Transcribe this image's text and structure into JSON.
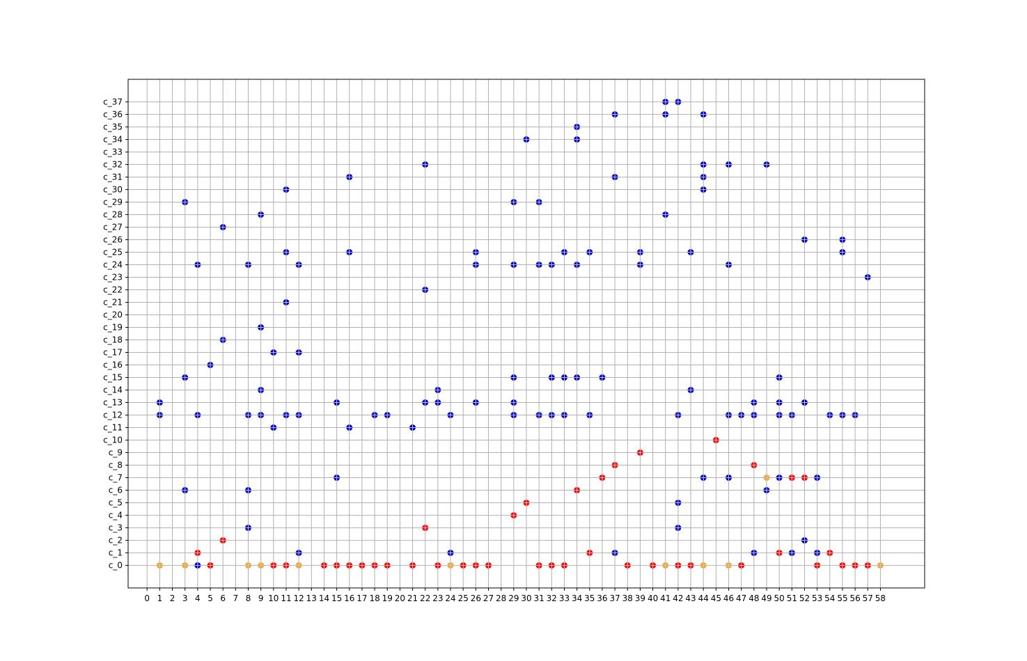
{
  "chart_data": {
    "type": "scatter",
    "title": "",
    "xlabel": "",
    "ylabel": "",
    "xlim": [
      -1.5,
      61.5
    ],
    "ylim": [
      -1.8,
      38.8
    ],
    "grid": true,
    "legend": "none",
    "x_ticks": [
      0,
      1,
      2,
      3,
      4,
      5,
      6,
      7,
      8,
      9,
      10,
      11,
      12,
      13,
      14,
      15,
      16,
      17,
      18,
      19,
      20,
      21,
      22,
      23,
      24,
      25,
      26,
      27,
      28,
      29,
      30,
      31,
      32,
      33,
      34,
      35,
      36,
      37,
      38,
      39,
      40,
      41,
      42,
      43,
      44,
      45,
      46,
      47,
      48,
      49,
      50,
      51,
      52,
      53,
      54,
      55,
      56,
      57,
      58
    ],
    "y_tick_labels": [
      "c_0",
      "c_1",
      "c_2",
      "c_3",
      "c_4",
      "c_5",
      "c_6",
      "c_7",
      "c_8",
      "c_9",
      "c_10",
      "c_11",
      "c_12",
      "c_13",
      "c_14",
      "c_15",
      "c_16",
      "c_17",
      "c_18",
      "c_19",
      "c_20",
      "c_21",
      "c_22",
      "c_23",
      "c_24",
      "c_25",
      "c_26",
      "c_27",
      "c_28",
      "c_29",
      "c_30",
      "c_31",
      "c_32",
      "c_33",
      "c_34",
      "c_35",
      "c_36",
      "c_37"
    ],
    "series": [
      {
        "color": "#0000cc",
        "points": [
          [
            1,
            12
          ],
          [
            1,
            13
          ],
          [
            3,
            29
          ],
          [
            3,
            15
          ],
          [
            3,
            6
          ],
          [
            4,
            24
          ],
          [
            4,
            12
          ],
          [
            4,
            0
          ],
          [
            5,
            16
          ],
          [
            6,
            27
          ],
          [
            6,
            18
          ],
          [
            8,
            24
          ],
          [
            8,
            12
          ],
          [
            8,
            6
          ],
          [
            8,
            3
          ],
          [
            9,
            28
          ],
          [
            9,
            19
          ],
          [
            9,
            14
          ],
          [
            9,
            12
          ],
          [
            10,
            17
          ],
          [
            10,
            11
          ],
          [
            11,
            30
          ],
          [
            11,
            25
          ],
          [
            11,
            21
          ],
          [
            11,
            12
          ],
          [
            12,
            24
          ],
          [
            12,
            17
          ],
          [
            12,
            12
          ],
          [
            12,
            1
          ],
          [
            15,
            13
          ],
          [
            15,
            7
          ],
          [
            16,
            31
          ],
          [
            16,
            25
          ],
          [
            16,
            11
          ],
          [
            18,
            12
          ],
          [
            19,
            12
          ],
          [
            21,
            11
          ],
          [
            22,
            32
          ],
          [
            22,
            22
          ],
          [
            22,
            13
          ],
          [
            23,
            14
          ],
          [
            23,
            13
          ],
          [
            24,
            12
          ],
          [
            24,
            1
          ],
          [
            26,
            25
          ],
          [
            26,
            24
          ],
          [
            26,
            13
          ],
          [
            29,
            29
          ],
          [
            29,
            24
          ],
          [
            29,
            15
          ],
          [
            29,
            13
          ],
          [
            29,
            12
          ],
          [
            30,
            34
          ],
          [
            31,
            29
          ],
          [
            31,
            24
          ],
          [
            31,
            12
          ],
          [
            32,
            24
          ],
          [
            32,
            15
          ],
          [
            32,
            12
          ],
          [
            33,
            25
          ],
          [
            33,
            15
          ],
          [
            33,
            12
          ],
          [
            34,
            35
          ],
          [
            34,
            34
          ],
          [
            34,
            24
          ],
          [
            34,
            15
          ],
          [
            35,
            25
          ],
          [
            35,
            12
          ],
          [
            36,
            15
          ],
          [
            37,
            36
          ],
          [
            37,
            31
          ],
          [
            37,
            1
          ],
          [
            39,
            25
          ],
          [
            39,
            24
          ],
          [
            41,
            37
          ],
          [
            41,
            36
          ],
          [
            41,
            28
          ],
          [
            42,
            37
          ],
          [
            42,
            12
          ],
          [
            42,
            5
          ],
          [
            42,
            3
          ],
          [
            43,
            25
          ],
          [
            43,
            14
          ],
          [
            44,
            36
          ],
          [
            44,
            32
          ],
          [
            44,
            31
          ],
          [
            44,
            30
          ],
          [
            44,
            7
          ],
          [
            46,
            32
          ],
          [
            46,
            24
          ],
          [
            46,
            12
          ],
          [
            46,
            7
          ],
          [
            47,
            12
          ],
          [
            48,
            13
          ],
          [
            48,
            12
          ],
          [
            48,
            1
          ],
          [
            49,
            32
          ],
          [
            49,
            6
          ],
          [
            50,
            15
          ],
          [
            50,
            13
          ],
          [
            50,
            12
          ],
          [
            50,
            7
          ],
          [
            51,
            12
          ],
          [
            51,
            1
          ],
          [
            52,
            26
          ],
          [
            52,
            13
          ],
          [
            52,
            2
          ],
          [
            53,
            7
          ],
          [
            53,
            1
          ],
          [
            54,
            12
          ],
          [
            55,
            26
          ],
          [
            55,
            25
          ],
          [
            55,
            12
          ],
          [
            56,
            12
          ],
          [
            57,
            23
          ]
        ]
      },
      {
        "color": "#ff0000",
        "points": [
          [
            4,
            1
          ],
          [
            5,
            0
          ],
          [
            6,
            2
          ],
          [
            10,
            0
          ],
          [
            11,
            0
          ],
          [
            14,
            0
          ],
          [
            15,
            0
          ],
          [
            16,
            0
          ],
          [
            17,
            0
          ],
          [
            18,
            0
          ],
          [
            19,
            0
          ],
          [
            21,
            0
          ],
          [
            22,
            3
          ],
          [
            23,
            0
          ],
          [
            25,
            0
          ],
          [
            26,
            0
          ],
          [
            27,
            0
          ],
          [
            29,
            4
          ],
          [
            30,
            5
          ],
          [
            31,
            0
          ],
          [
            32,
            0
          ],
          [
            33,
            0
          ],
          [
            34,
            6
          ],
          [
            35,
            1
          ],
          [
            36,
            7
          ],
          [
            37,
            8
          ],
          [
            38,
            0
          ],
          [
            39,
            9
          ],
          [
            40,
            0
          ],
          [
            42,
            0
          ],
          [
            43,
            0
          ],
          [
            45,
            10
          ],
          [
            47,
            0
          ],
          [
            48,
            8
          ],
          [
            50,
            1
          ],
          [
            51,
            7
          ],
          [
            52,
            7
          ],
          [
            53,
            0
          ],
          [
            54,
            1
          ],
          [
            55,
            0
          ],
          [
            56,
            0
          ],
          [
            57,
            0
          ]
        ]
      },
      {
        "color": "#f0a830",
        "points": [
          [
            1,
            0
          ],
          [
            3,
            0
          ],
          [
            8,
            0
          ],
          [
            9,
            0
          ],
          [
            12,
            0
          ],
          [
            24,
            0
          ],
          [
            41,
            0
          ],
          [
            44,
            0
          ],
          [
            46,
            0
          ],
          [
            49,
            7
          ],
          [
            58,
            0
          ]
        ]
      }
    ]
  }
}
